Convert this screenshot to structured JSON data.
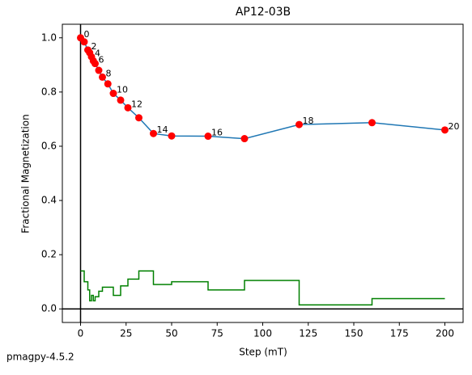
{
  "chart_data": {
    "type": "line",
    "title": "AP12-03B",
    "xlabel": "Step (mT)",
    "ylabel": "Fractional Magnetization",
    "footer": "pmagpy-4.5.2",
    "x": [
      0,
      2,
      4,
      5,
      6,
      7,
      8,
      10,
      12,
      15,
      18,
      22,
      26,
      32,
      40,
      50,
      70,
      90,
      120,
      160,
      200
    ],
    "point_labels": [
      "0",
      null,
      "2",
      null,
      "4",
      null,
      "6",
      null,
      "8",
      null,
      "10",
      null,
      "12",
      null,
      "14",
      null,
      "16",
      null,
      "18",
      null,
      "20"
    ],
    "series": [
      {
        "color": "#1f77b4",
        "marker_color": "#ff0000",
        "values": [
          1.0,
          0.985,
          0.955,
          0.945,
          0.93,
          0.915,
          0.905,
          0.88,
          0.855,
          0.83,
          0.795,
          0.77,
          0.742,
          0.705,
          0.647,
          0.638,
          0.637,
          0.628,
          0.68,
          0.687,
          0.66
        ]
      },
      {
        "color": "#008000",
        "step": true,
        "values": [
          0.14,
          0.1,
          0.07,
          0.03,
          0.05,
          0.03,
          0.045,
          0.065,
          0.08,
          0.08,
          0.05,
          0.085,
          0.11,
          0.14,
          0.09,
          0.1,
          0.07,
          0.105,
          0.015,
          0.038,
          0.038
        ]
      }
    ],
    "xlim": [
      -10,
      210
    ],
    "ylim": [
      -0.05,
      1.05
    ],
    "xticks": [
      0,
      25,
      50,
      75,
      100,
      125,
      150,
      175,
      200
    ],
    "yticks": [
      {
        "value": 0,
        "label": "0.0"
      },
      0.2,
      0.4,
      0.6,
      0.8,
      {
        "value": 1,
        "label": "1.0"
      }
    ],
    "grid": false
  }
}
